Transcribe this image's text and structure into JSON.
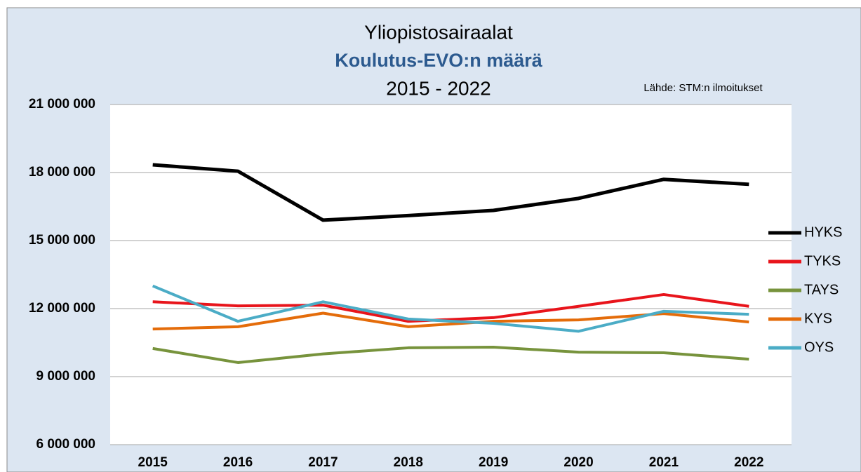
{
  "chart_data": {
    "type": "line",
    "title": "Yliopistosairaalat",
    "subtitle": "Koulutus-EVO:n määrä",
    "period": "2015 - 2022",
    "source": "Lähde: STM:n ilmoitukset",
    "categories": [
      "2015",
      "2016",
      "2017",
      "2018",
      "2019",
      "2020",
      "2021",
      "2022"
    ],
    "series": [
      {
        "name": "HYKS",
        "color": "#000000",
        "values": [
          18340000,
          18060000,
          15900000,
          16100000,
          16330000,
          16860000,
          17700000,
          17480000
        ]
      },
      {
        "name": "TYKS",
        "color": "#e8141b",
        "values": [
          12300000,
          12120000,
          12150000,
          11440000,
          11600000,
          12100000,
          12620000,
          12100000
        ]
      },
      {
        "name": "TAYS",
        "color": "#77933c",
        "values": [
          10240000,
          9620000,
          10000000,
          10270000,
          10300000,
          10080000,
          10050000,
          9770000
        ]
      },
      {
        "name": "KYS",
        "color": "#e46c0a",
        "values": [
          11100000,
          11200000,
          11800000,
          11200000,
          11440000,
          11500000,
          11780000,
          11410000
        ]
      },
      {
        "name": "OYS",
        "color": "#4bacc6",
        "values": [
          13000000,
          11440000,
          12300000,
          11540000,
          11350000,
          11000000,
          11880000,
          11750000
        ]
      }
    ],
    "ylim": [
      6000000,
      21000000
    ],
    "yticks": [
      {
        "value": 6000000,
        "label": "6 000 000"
      },
      {
        "value": 9000000,
        "label": "9 000 000"
      },
      {
        "value": 12000000,
        "label": "12 000 000"
      },
      {
        "value": 15000000,
        "label": "15 000 000"
      },
      {
        "value": 18000000,
        "label": "18 000 000"
      },
      {
        "value": 21000000,
        "label": "21 000 000"
      }
    ],
    "grid": true,
    "legend": "right"
  }
}
